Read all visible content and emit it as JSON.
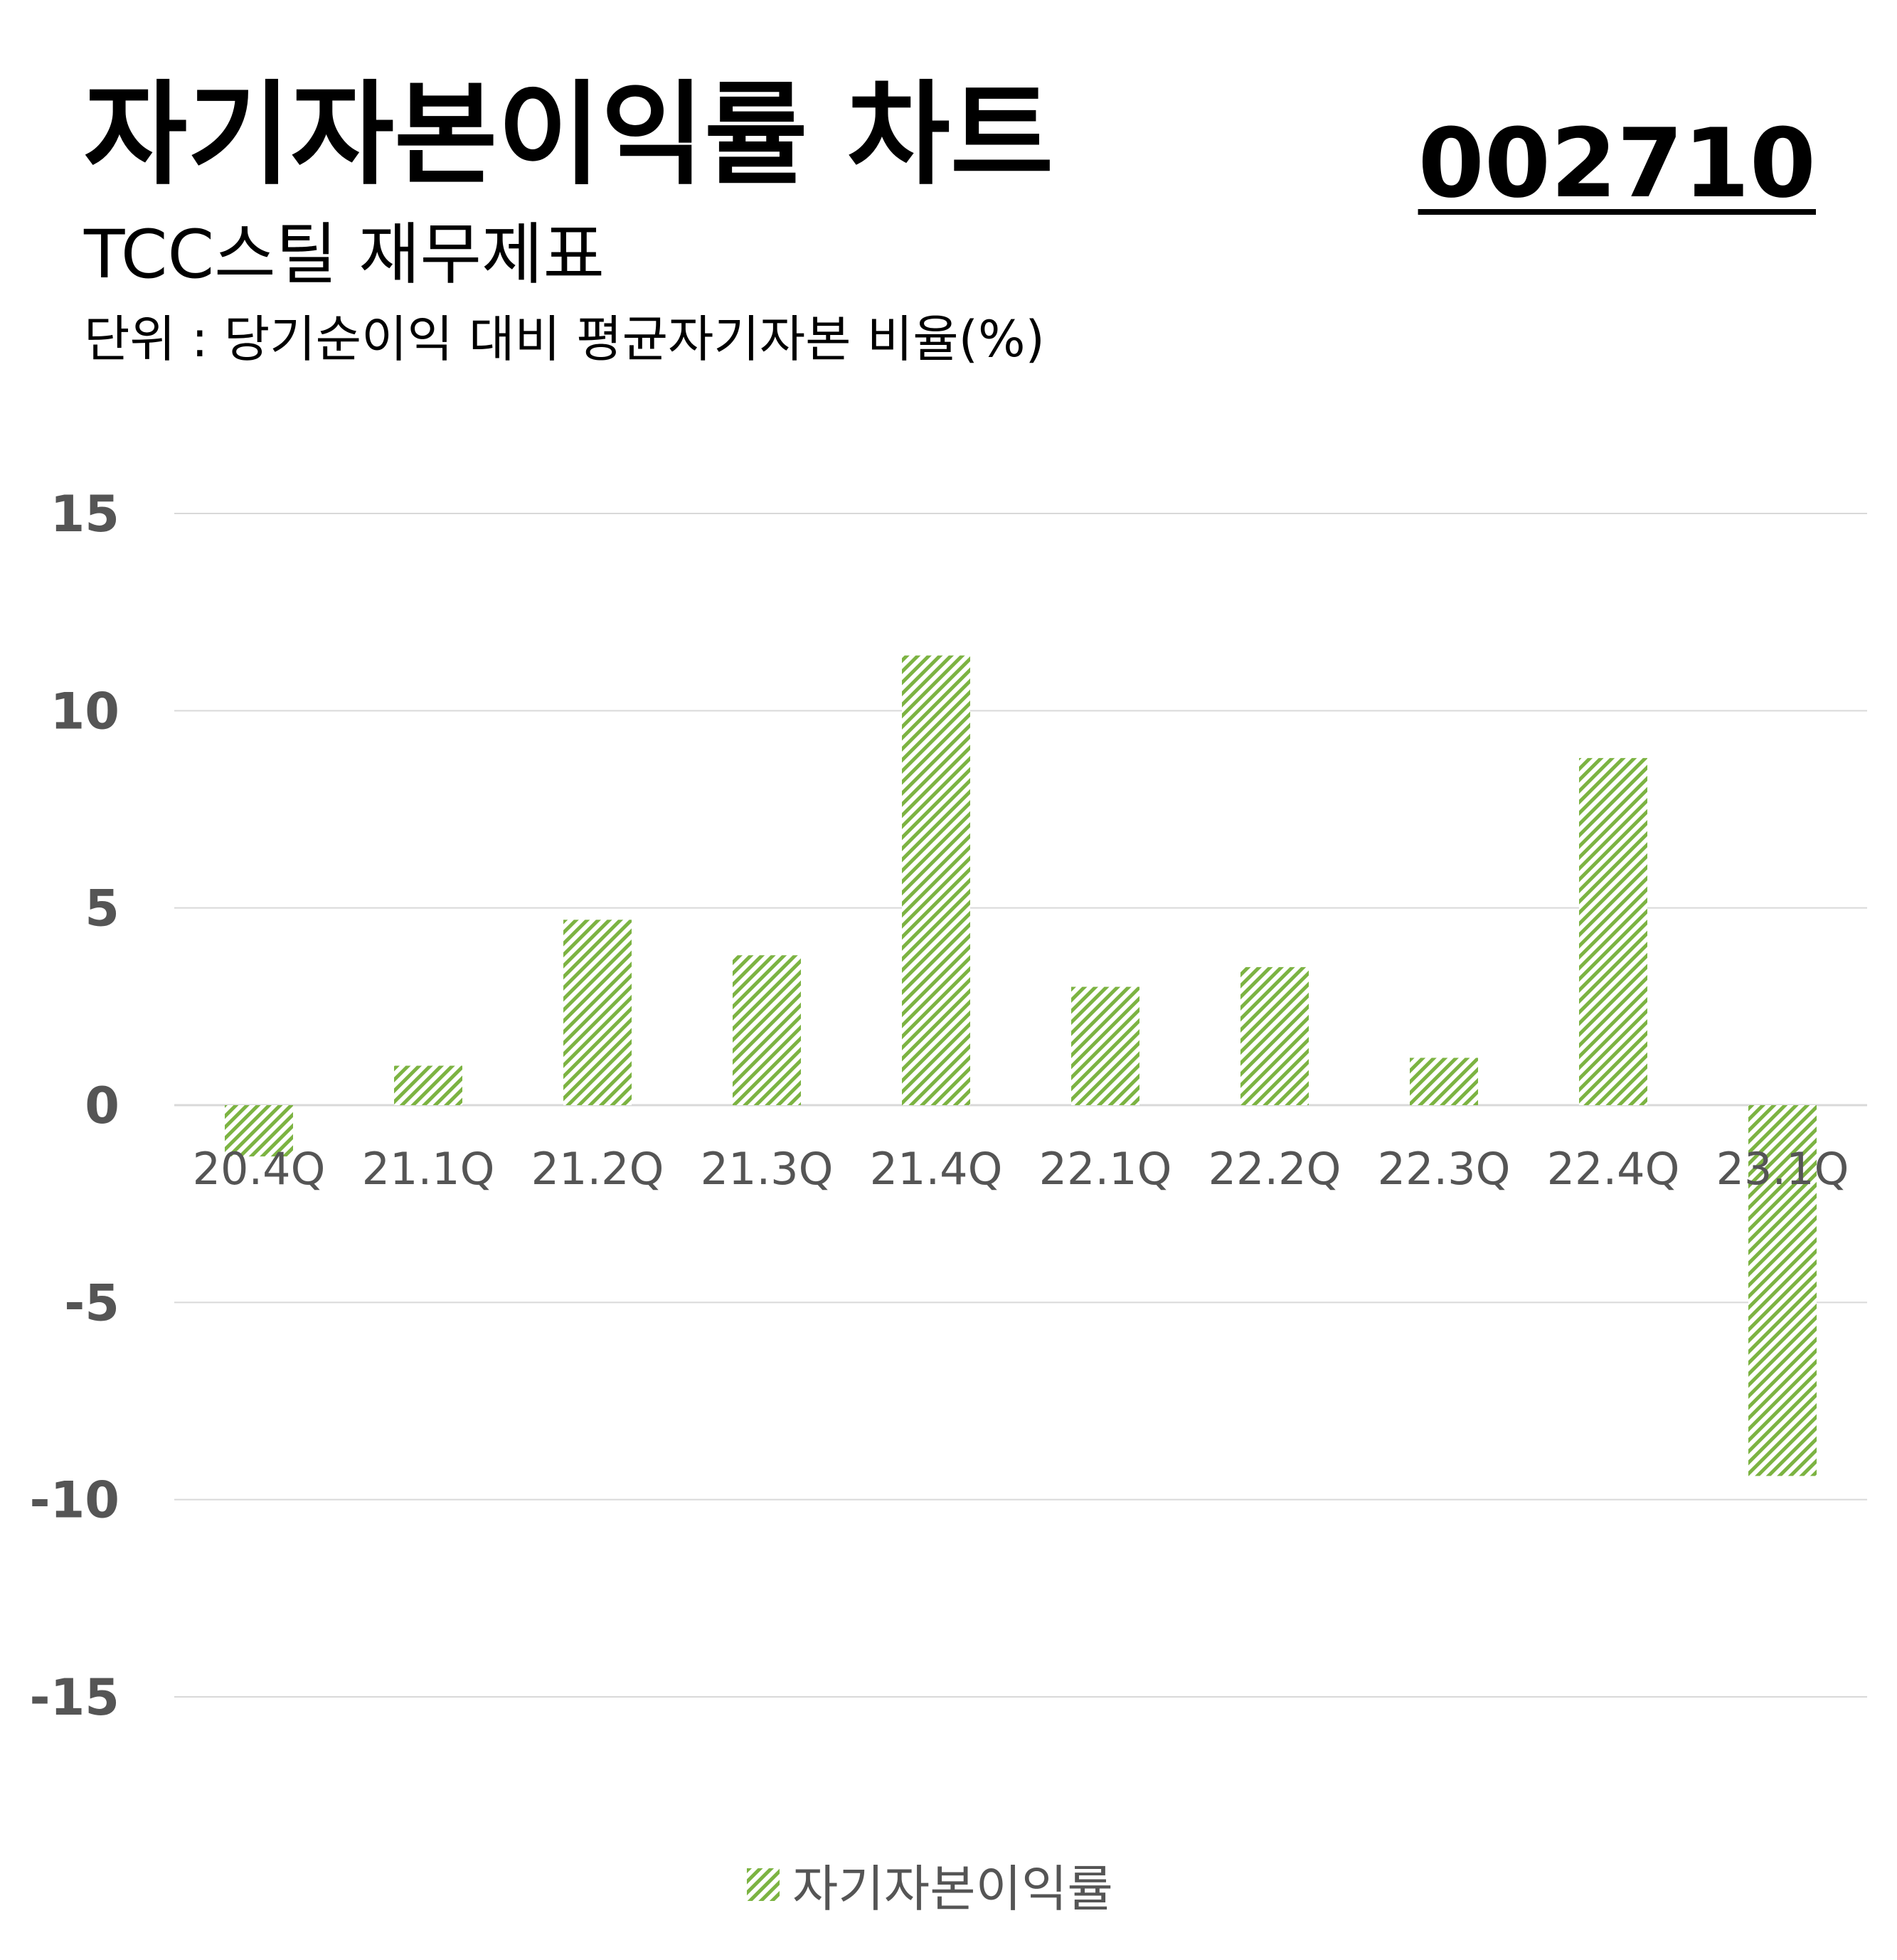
{
  "header": {
    "title": "자기자본이익률 차트",
    "code": "002710",
    "subtitle": "TCC스틸 재무제표",
    "unit_note": "단위 : 당기순이익 대비 평균자기자본 비율(%)"
  },
  "colors": {
    "bar": "#7cb342",
    "grid": "#d9d9d9",
    "axis_text": "#555555",
    "title_text": "#000000"
  },
  "chart_data": {
    "type": "bar",
    "categories": [
      "20.4Q",
      "21.1Q",
      "21.2Q",
      "21.3Q",
      "21.4Q",
      "22.1Q",
      "22.2Q",
      "22.3Q",
      "22.4Q",
      "23.1Q"
    ],
    "series": [
      {
        "name": "자기자본이익률",
        "values": [
          -1.3,
          1.0,
          4.7,
          3.8,
          11.4,
          3.0,
          3.5,
          1.2,
          8.8,
          -9.4
        ],
        "color": "#7cb342",
        "pattern": "diagonal-hatch"
      }
    ],
    "ylim": [
      -15,
      15
    ],
    "yticks": [
      15,
      10,
      5,
      0,
      -5,
      -10,
      -15
    ],
    "grid": true,
    "legend": "bottom-center"
  },
  "legend": {
    "label": "자기자본이익률",
    "icon": "hatched-square-icon"
  }
}
